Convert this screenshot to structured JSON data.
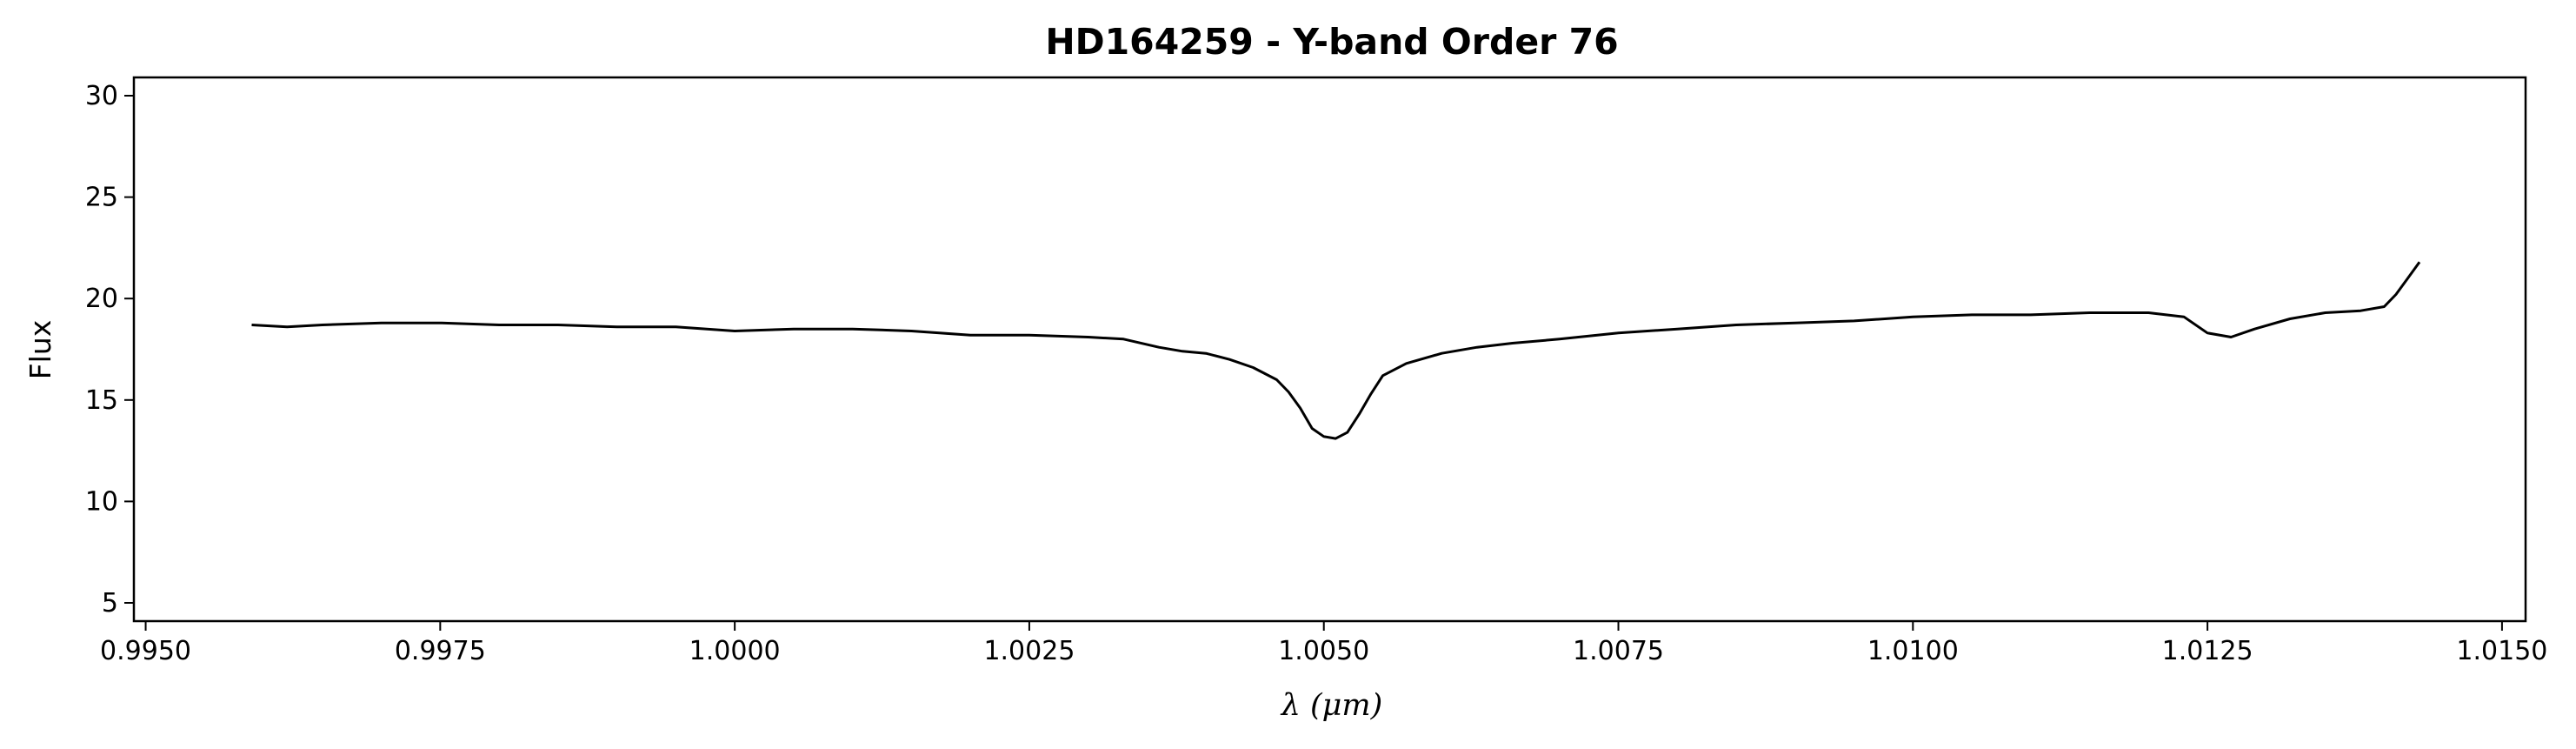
{
  "chart_data": {
    "type": "line",
    "title": "HD164259 - Y-band Order 76",
    "xlabel": "λ (μm)",
    "ylabel": "Flux",
    "xlim": [
      0.9949,
      1.0152
    ],
    "ylim": [
      4.1,
      30.9
    ],
    "xticks": [
      0.995,
      0.9975,
      1.0,
      1.0025,
      1.005,
      1.0075,
      1.01,
      1.0125,
      1.015
    ],
    "xtick_labels": [
      "0.9950",
      "0.9975",
      "1.0000",
      "1.0025",
      "1.0050",
      "1.0075",
      "1.0100",
      "1.0125",
      "1.0150"
    ],
    "yticks": [
      5,
      10,
      15,
      20,
      25,
      30
    ],
    "ytick_labels": [
      "5",
      "10",
      "15",
      "20",
      "25",
      "30"
    ],
    "grid": false,
    "series": [
      {
        "color": "#000000",
        "x": [
          0.9959,
          0.9962,
          0.9965,
          0.997,
          0.9975,
          0.998,
          0.9985,
          0.999,
          0.9995,
          1.0,
          1.0005,
          1.001,
          1.0015,
          1.002,
          1.0025,
          1.003,
          1.0033,
          1.0036,
          1.0038,
          1.004,
          1.0042,
          1.0044,
          1.0046,
          1.0047,
          1.0048,
          1.0049,
          1.005,
          1.0051,
          1.0052,
          1.0053,
          1.0054,
          1.0055,
          1.0057,
          1.006,
          1.0063,
          1.0066,
          1.007,
          1.0075,
          1.008,
          1.0085,
          1.009,
          1.0095,
          1.01,
          1.0105,
          1.011,
          1.0115,
          1.012,
          1.0123,
          1.0125,
          1.0127,
          1.0129,
          1.0132,
          1.0135,
          1.0138,
          1.014,
          1.0141,
          1.0142,
          1.0143
        ],
        "y": [
          18.7,
          18.6,
          18.7,
          18.8,
          18.8,
          18.7,
          18.7,
          18.6,
          18.6,
          18.4,
          18.5,
          18.5,
          18.4,
          18.2,
          18.2,
          18.1,
          18.0,
          17.6,
          17.4,
          17.3,
          17.0,
          16.6,
          16.0,
          15.4,
          14.6,
          13.6,
          13.2,
          13.1,
          13.4,
          14.3,
          15.3,
          16.2,
          16.8,
          17.3,
          17.6,
          17.8,
          18.0,
          18.3,
          18.5,
          18.7,
          18.8,
          18.9,
          19.1,
          19.2,
          19.2,
          19.3,
          19.3,
          19.1,
          18.3,
          18.1,
          18.5,
          19.0,
          19.3,
          19.4,
          19.6,
          20.2,
          21.0,
          21.8
        ]
      }
    ]
  }
}
